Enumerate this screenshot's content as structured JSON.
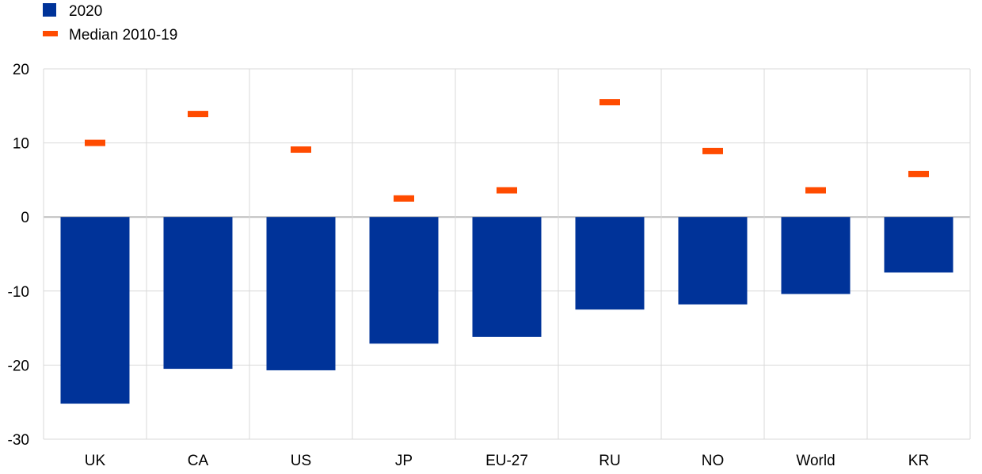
{
  "chart_data": {
    "type": "bar",
    "categories": [
      "UK",
      "CA",
      "US",
      "JP",
      "EU-27",
      "RU",
      "NO",
      "World",
      "KR"
    ],
    "series": [
      {
        "name": "2020",
        "kind": "bar",
        "color": "#003399",
        "values": [
          -25.2,
          -20.5,
          -20.7,
          -17.1,
          -16.2,
          -12.5,
          -11.8,
          -10.4,
          -7.5
        ]
      },
      {
        "name": "Median 2010-19",
        "kind": "marker",
        "color": "#ff4b00",
        "values": [
          10.0,
          13.9,
          9.1,
          2.5,
          3.6,
          15.5,
          8.9,
          3.6,
          5.8
        ]
      }
    ],
    "ylim": [
      -30,
      20
    ],
    "yticks": [
      20,
      10,
      0,
      -10,
      -20,
      -30
    ],
    "grid": true,
    "legend_position": "top-left",
    "title": "",
    "xlabel": "",
    "ylabel": ""
  }
}
